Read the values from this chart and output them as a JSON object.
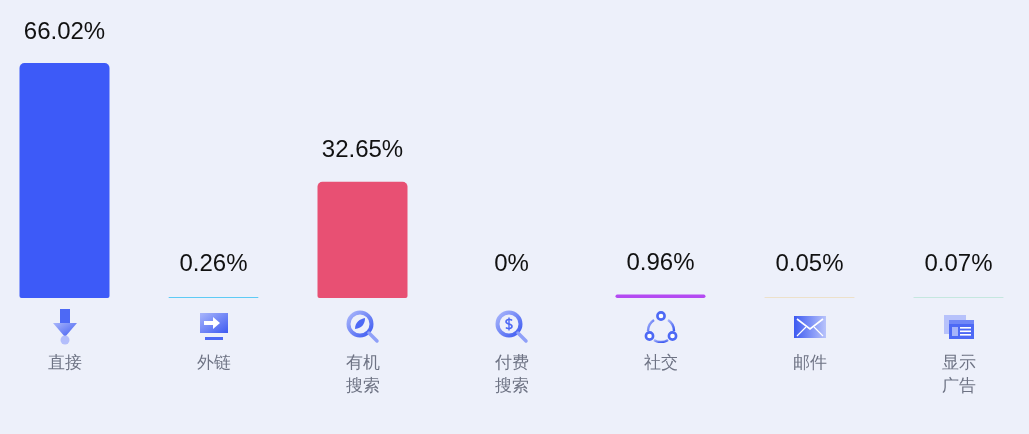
{
  "chart_data": {
    "type": "bar",
    "categories": [
      "直接",
      "外链",
      "有机搜索",
      "付费搜索",
      "社交",
      "邮件",
      "显示广告"
    ],
    "values": [
      66.02,
      0.26,
      32.65,
      0,
      0.96,
      0.05,
      0.07
    ],
    "colors": [
      "#3d5af8",
      "#5ecbf5",
      "#e85073",
      "#d7dbe5",
      "#b44af2",
      "#f0b43e",
      "#4fcb8e"
    ],
    "value_labels": [
      "66.02%",
      "0.26%",
      "32.65%",
      "0%",
      "0.96%",
      "0.05%",
      "0.07%"
    ]
  }
}
